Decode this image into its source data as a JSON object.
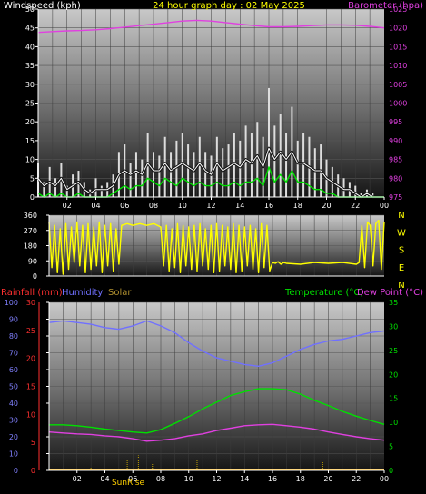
{
  "header": {
    "left": "Windspeed (kph)",
    "center": "24 hour graph day : 02 May 2025",
    "right": "Barometer (hpa)"
  },
  "colors": {
    "wind_avg": "#ffffff",
    "wind_gust": "#dddddd",
    "wind_alt": "#00e000",
    "barometer": "#e040e0",
    "direction": "#ffff00",
    "humidity": "#7070ff",
    "temperature": "#00e000",
    "dewpoint": "#e040e0",
    "rainfall_label": "#ff3030",
    "solar": "#c0a000",
    "sunrise": "#ffd000"
  },
  "chart_data": [
    {
      "type": "line",
      "title": "24 hour graph day : 02 May 2025",
      "x_ticks": [
        "02",
        "04",
        "06",
        "08",
        "10",
        "12",
        "14",
        "16",
        "18",
        "20",
        "22",
        "00"
      ],
      "xlim": [
        0,
        24
      ],
      "left_axis": {
        "label": "Windspeed (kph)",
        "ticks": [
          0,
          5,
          10,
          15,
          20,
          25,
          30,
          35,
          40,
          45,
          50
        ],
        "ylim": [
          0,
          50
        ]
      },
      "right_axis": {
        "label": "Barometer (hpa)",
        "ticks": [
          975,
          980,
          985,
          990,
          995,
          1000,
          1005,
          1010,
          1015,
          1020,
          1025
        ],
        "ylim": [
          975,
          1025
        ]
      },
      "series": [
        {
          "name": "Barometer (hpa)",
          "axis": "right",
          "x": [
            0,
            1,
            2,
            3,
            4,
            5,
            6,
            7,
            8,
            9,
            10,
            11,
            12,
            13,
            14,
            15,
            16,
            17,
            18,
            19,
            20,
            21,
            22,
            23,
            24
          ],
          "values": [
            1018.8,
            1019.0,
            1019.2,
            1019.3,
            1019.5,
            1019.8,
            1020.2,
            1020.6,
            1021.0,
            1021.4,
            1021.8,
            1022.0,
            1021.8,
            1021.4,
            1021.0,
            1020.6,
            1020.3,
            1020.3,
            1020.4,
            1020.6,
            1020.8,
            1020.8,
            1020.7,
            1020.4,
            1020.0
          ]
        },
        {
          "name": "Wind gust",
          "axis": "left",
          "style": "spikes",
          "x": [
            0,
            0.4,
            0.8,
            1.2,
            1.6,
            2,
            2.4,
            2.8,
            3.2,
            3.6,
            4,
            4.4,
            4.8,
            5.2,
            5.6,
            6,
            6.4,
            6.8,
            7.2,
            7.6,
            8,
            8.4,
            8.8,
            9.2,
            9.6,
            10,
            10.4,
            10.8,
            11.2,
            11.6,
            12,
            12.4,
            12.8,
            13.2,
            13.6,
            14,
            14.4,
            14.8,
            15.2,
            15.6,
            16,
            16.4,
            16.8,
            17.2,
            17.6,
            18,
            18.4,
            18.8,
            19.2,
            19.6,
            20,
            20.4,
            20.8,
            21.2,
            21.6,
            22,
            22.4,
            22.8,
            23.2,
            23.6,
            24
          ],
          "values": [
            9,
            4,
            8,
            5,
            9,
            3,
            6,
            7,
            4,
            2,
            5,
            3,
            4,
            6,
            12,
            14,
            9,
            12,
            10,
            17,
            12,
            11,
            16,
            12,
            15,
            17,
            14,
            12,
            16,
            12,
            11,
            16,
            13,
            14,
            17,
            15,
            19,
            17,
            20,
            16,
            29,
            19,
            22,
            17,
            24,
            15,
            17,
            16,
            13,
            14,
            10,
            8,
            6,
            5,
            4,
            3,
            1,
            2,
            1,
            0,
            0
          ]
        },
        {
          "name": "Wind average",
          "axis": "left",
          "style": "band",
          "x": [
            0,
            0.4,
            0.8,
            1.2,
            1.6,
            2,
            2.4,
            2.8,
            3.2,
            3.6,
            4,
            4.4,
            4.8,
            5.2,
            5.6,
            6,
            6.4,
            6.8,
            7.2,
            7.6,
            8,
            8.4,
            8.8,
            9.2,
            9.6,
            10,
            10.4,
            10.8,
            11.2,
            11.6,
            12,
            12.4,
            12.8,
            13.2,
            13.6,
            14,
            14.4,
            14.8,
            15.2,
            15.6,
            16,
            16.4,
            16.8,
            17.2,
            17.6,
            18,
            18.4,
            18.8,
            19.2,
            19.6,
            20,
            20.4,
            20.8,
            21.2,
            21.6,
            22,
            22.4,
            22.8,
            23.2,
            23.6,
            24
          ],
          "values": [
            5,
            3,
            4,
            3,
            5,
            2,
            3,
            4,
            2,
            1,
            2,
            2,
            2,
            3,
            6,
            7,
            6,
            7,
            6,
            9,
            7,
            7,
            9,
            7,
            8,
            9,
            8,
            7,
            9,
            7,
            6,
            9,
            7,
            8,
            9,
            8,
            10,
            9,
            11,
            8,
            13,
            10,
            12,
            10,
            12,
            9,
            9,
            8,
            7,
            7,
            5,
            4,
            3,
            2,
            2,
            1,
            0,
            1,
            0,
            0,
            0
          ]
        },
        {
          "name": "Wind green",
          "axis": "left",
          "x": [
            0,
            0.4,
            0.8,
            1.2,
            1.6,
            2,
            2.4,
            2.8,
            3.2,
            3.6,
            4,
            4.4,
            4.8,
            5.2,
            5.6,
            6,
            6.4,
            6.8,
            7.2,
            7.6,
            8,
            8.4,
            8.8,
            9.2,
            9.6,
            10,
            10.4,
            10.8,
            11.2,
            11.6,
            12,
            12.4,
            12.8,
            13.2,
            13.6,
            14,
            14.4,
            14.8,
            15.2,
            15.6,
            16,
            16.4,
            16.8,
            17.2,
            17.6,
            18,
            18.4,
            18.8,
            19.2,
            19.6,
            20,
            20.4,
            20.8,
            21.2,
            21.6,
            22,
            22.4,
            22.8,
            23.2,
            23.6,
            24
          ],
          "values": [
            1,
            0,
            1,
            0,
            1,
            0,
            0,
            1,
            0,
            0,
            0,
            0,
            0,
            1,
            2,
            3,
            2,
            3,
            3,
            5,
            4,
            3,
            5,
            4,
            3,
            5,
            4,
            3,
            4,
            3,
            3,
            4,
            3,
            3,
            4,
            3,
            4,
            4,
            5,
            3,
            8,
            4,
            6,
            4,
            7,
            4,
            4,
            3,
            2,
            2,
            1,
            1,
            0,
            0,
            0,
            0,
            0,
            0,
            0,
            0,
            0
          ]
        }
      ]
    },
    {
      "type": "line",
      "title": "",
      "x_ticks": [],
      "xlim": [
        0,
        24
      ],
      "left_axis": {
        "label": "",
        "ticks": [
          0,
          90,
          180,
          270,
          360
        ],
        "ylim": [
          0,
          360
        ]
      },
      "right_labels": [
        "N",
        "W",
        "S",
        "E",
        "N"
      ],
      "series": [
        {
          "name": "Wind direction",
          "axis": "left",
          "x": [
            0,
            0.2,
            0.4,
            0.6,
            0.8,
            1,
            1.2,
            1.4,
            1.6,
            1.8,
            2,
            2.2,
            2.4,
            2.6,
            2.8,
            3,
            3.2,
            3.4,
            3.6,
            3.8,
            4,
            4.2,
            4.4,
            4.6,
            4.8,
            5,
            5.2,
            5.6,
            6,
            6.5,
            7,
            7.5,
            8,
            8.2,
            8.4,
            8.6,
            8.8,
            9,
            9.2,
            9.4,
            9.6,
            9.8,
            10,
            10.2,
            10.4,
            10.6,
            10.8,
            11,
            11.2,
            11.4,
            11.6,
            11.8,
            12,
            12.2,
            12.4,
            12.6,
            12.8,
            13,
            13.2,
            13.4,
            13.6,
            13.8,
            14,
            14.2,
            14.4,
            14.6,
            14.8,
            15,
            15.2,
            15.4,
            15.6,
            15.8,
            16,
            16.2,
            16.4,
            16.6,
            16.8,
            17,
            18,
            19,
            20,
            21,
            22,
            22.2,
            22.4,
            22.6,
            22.8,
            23,
            23.2,
            23.4,
            23.6,
            23.8,
            24
          ],
          "values": [
            320,
            50,
            300,
            20,
            280,
            10,
            310,
            40,
            290,
            80,
            320,
            60,
            300,
            20,
            310,
            40,
            290,
            60,
            320,
            20,
            300,
            60,
            310,
            30,
            280,
            70,
            300,
            310,
            300,
            310,
            300,
            310,
            290,
            60,
            300,
            30,
            280,
            50,
            310,
            20,
            300,
            60,
            290,
            40,
            300,
            30,
            310,
            60,
            280,
            40,
            300,
            20,
            310,
            30,
            300,
            60,
            290,
            40,
            310,
            20,
            300,
            30,
            290,
            60,
            300,
            40,
            280,
            20,
            310,
            50,
            300,
            30,
            80,
            75,
            85,
            70,
            80,
            75,
            70,
            80,
            75,
            80,
            70,
            80,
            300,
            50,
            320,
            300,
            60,
            310,
            330,
            40,
            320
          ]
        }
      ]
    },
    {
      "type": "line",
      "title": "",
      "x_ticks": [
        "02",
        "04",
        "06",
        "08",
        "10",
        "12",
        "14",
        "16",
        "18",
        "20",
        "22",
        "00"
      ],
      "xlim": [
        0,
        24
      ],
      "annotations": [
        "SunRise"
      ],
      "labels": [
        "Rainfall (mm)",
        "Humidity",
        "Solar",
        "Temperature (°C)",
        "Dew Point (°C)"
      ],
      "left_axis": {
        "label": "Humidity",
        "ticks": [
          0,
          10,
          20,
          30,
          40,
          50,
          60,
          70,
          80,
          90,
          100
        ],
        "ylim": [
          0,
          100
        ]
      },
      "rain_axis": {
        "label": "Rainfall (mm)",
        "ticks": [
          0,
          5,
          10,
          15,
          20,
          25,
          30
        ],
        "ylim": [
          0,
          30
        ]
      },
      "right_axis": {
        "label": "Temperature (°C)",
        "ticks": [
          0,
          5,
          10,
          15,
          20,
          25,
          30,
          35
        ],
        "ylim": [
          0,
          35
        ]
      },
      "series": [
        {
          "name": "Humidity",
          "axis": "left",
          "x": [
            0,
            1,
            2,
            3,
            4,
            5,
            6,
            7,
            8,
            9,
            10,
            11,
            12,
            13,
            14,
            15,
            16,
            17,
            18,
            19,
            20,
            21,
            22,
            23,
            24
          ],
          "values": [
            88,
            89,
            88,
            87,
            85,
            84,
            86,
            89,
            86,
            82,
            76,
            71,
            67,
            65,
            63,
            62,
            64,
            68,
            72,
            75,
            77,
            78,
            80,
            82,
            83
          ]
        },
        {
          "name": "Temperature (°C)",
          "axis": "right",
          "x": [
            0,
            1,
            2,
            3,
            4,
            5,
            6,
            7,
            8,
            9,
            10,
            11,
            12,
            13,
            14,
            15,
            16,
            17,
            18,
            19,
            20,
            21,
            22,
            23,
            24
          ],
          "values": [
            9.5,
            9.5,
            9.3,
            9.0,
            8.6,
            8.3,
            8.0,
            7.8,
            8.5,
            9.8,
            11.2,
            12.8,
            14.2,
            15.6,
            16.4,
            17.0,
            17.0,
            16.8,
            15.9,
            14.6,
            13.5,
            12.3,
            11.3,
            10.4,
            9.6
          ]
        },
        {
          "name": "Dew Point (°C)",
          "axis": "right",
          "x": [
            0,
            1,
            2,
            3,
            4,
            5,
            6,
            7,
            8,
            9,
            10,
            11,
            12,
            13,
            14,
            15,
            16,
            17,
            18,
            19,
            20,
            21,
            22,
            23,
            24
          ],
          "values": [
            8.0,
            7.8,
            7.6,
            7.5,
            7.2,
            7.0,
            6.6,
            6.1,
            6.3,
            6.6,
            7.2,
            7.6,
            8.3,
            8.8,
            9.3,
            9.5,
            9.6,
            9.3,
            9.0,
            8.6,
            8.0,
            7.5,
            7.0,
            6.6,
            6.3
          ]
        },
        {
          "name": "Solar",
          "axis": "left",
          "style": "ticks",
          "x": [
            3,
            5.6,
            6.4,
            7.4,
            10.6,
            19.6
          ],
          "values": [
            2,
            6,
            9,
            4,
            7,
            5
          ]
        }
      ]
    }
  ]
}
